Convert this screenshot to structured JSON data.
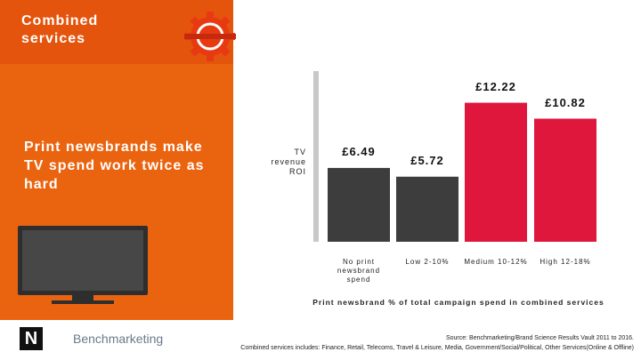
{
  "header": {
    "title": "Combined services"
  },
  "headline": "Print newsbrands make TV spend work twice as hard",
  "logos": {
    "newsworks": "N",
    "benchmarketing": "Benchmarketing"
  },
  "footer": {
    "source": "Source: Benchmarketing/Brand Science Results Vault 2011 to 2016.",
    "note": "Combined services includes: Finance, Retail, Telecoms, Travel & Leisure, Media, Government/Social/Political, Other Services(Online & Offline)"
  },
  "chart_data": {
    "type": "bar",
    "y_label": "TV revenue ROI",
    "x_label": "Print newsbrand % of total campaign spend in combined services",
    "categories": [
      "No print newsbrand spend",
      "Low 2-10%",
      "Medium 10-12%",
      "High 12-18%"
    ],
    "values": [
      6.49,
      5.72,
      12.22,
      10.82
    ],
    "value_labels": [
      "£6.49",
      "£5.72",
      "£12.22",
      "£10.82"
    ],
    "colors": [
      "#3d3d3d",
      "#3d3d3d",
      "#e0173c",
      "#e0173c"
    ],
    "ylim": [
      0,
      15
    ]
  }
}
